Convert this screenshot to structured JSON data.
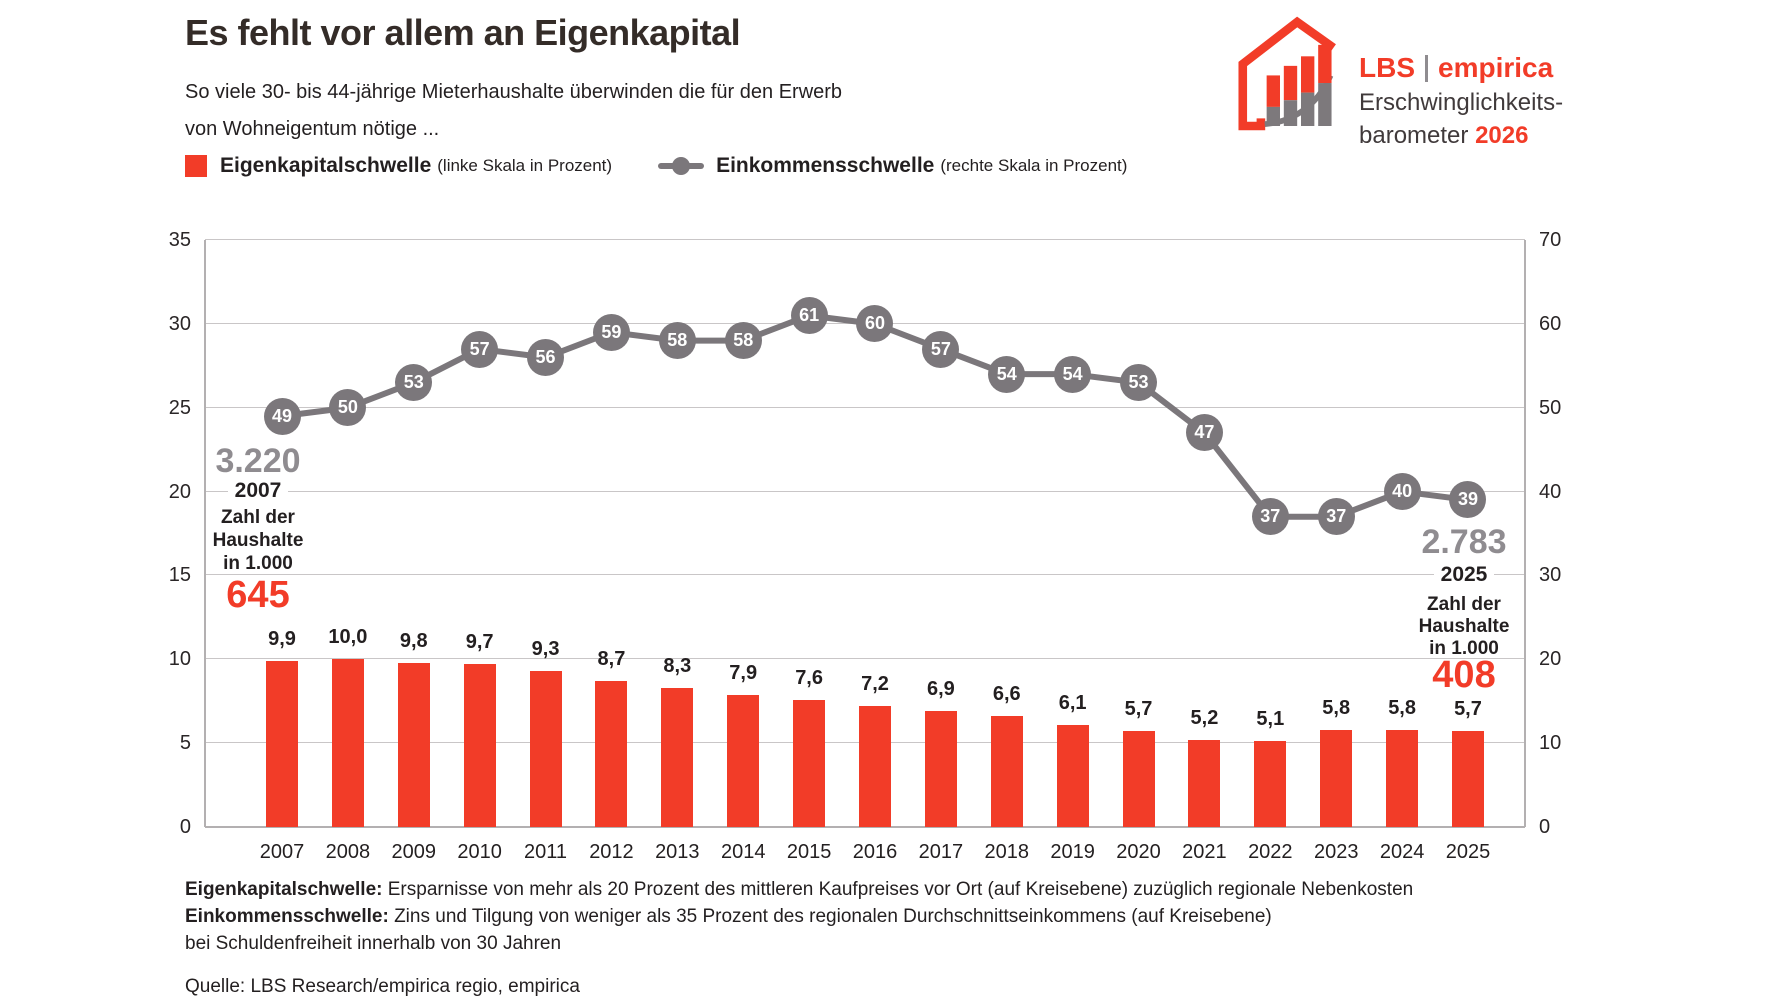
{
  "header": {
    "title": "Es fehlt vor allem an Eigenkapital",
    "subtitle_line1": "So viele 30- bis 44-jährige Mieterhaushalte überwinden die für den Erwerb",
    "subtitle_line2": "von Wohneigentum nötige ...",
    "logo": {
      "brand_left": "LBS",
      "brand_right": "empirica",
      "product_line1": "Erschwinglichkeits-",
      "product_line2": "barometer ",
      "product_year": "2026"
    }
  },
  "legend": {
    "series1_label": "Eigenkapitalschwelle",
    "series1_note": "(linke Skala in Prozent)",
    "series2_label": "Einkommensschwelle",
    "series2_note": "(rechte Skala in Prozent)"
  },
  "colors": {
    "accent_red": "#f23c28",
    "line_gray": "#7b777b",
    "annotation_gray": "#8f8c90"
  },
  "chart_data": {
    "type": "bar+line",
    "title": "Es fehlt vor allem an Eigenkapital",
    "categories": [
      "2007",
      "2008",
      "2009",
      "2010",
      "2011",
      "2012",
      "2013",
      "2014",
      "2015",
      "2016",
      "2017",
      "2018",
      "2019",
      "2020",
      "2021",
      "2022",
      "2023",
      "2024",
      "2025"
    ],
    "series": [
      {
        "name": "Eigenkapitalschwelle",
        "type": "bar",
        "axis": "left",
        "color": "#f23c28",
        "values": [
          9.9,
          10.0,
          9.8,
          9.7,
          9.3,
          8.7,
          8.3,
          7.9,
          7.6,
          7.2,
          6.9,
          6.6,
          6.1,
          5.7,
          5.2,
          5.1,
          5.8,
          5.8,
          5.7
        ],
        "labels": [
          "9,9",
          "10,0",
          "9,8",
          "9,7",
          "9,3",
          "8,7",
          "8,3",
          "7,9",
          "7,6",
          "7,2",
          "6,9",
          "6,6",
          "6,1",
          "5,7",
          "5,2",
          "5,1",
          "5,8",
          "5,8",
          "5,7"
        ]
      },
      {
        "name": "Einkommensschwelle",
        "type": "line",
        "axis": "right",
        "color": "#7b777b",
        "values": [
          49,
          50,
          53,
          57,
          56,
          59,
          58,
          58,
          61,
          60,
          57,
          54,
          54,
          53,
          47,
          37,
          37,
          40,
          39
        ]
      }
    ],
    "left_axis": {
      "min": 0,
      "max": 35,
      "ticks": [
        0,
        5,
        10,
        15,
        20,
        25,
        30,
        35
      ]
    },
    "right_axis": {
      "min": 0,
      "max": 70,
      "ticks": [
        0,
        10,
        20,
        30,
        40,
        50,
        60,
        70
      ]
    },
    "grid": true,
    "legend_position": "top",
    "annotations": {
      "left": {
        "value": "3.220",
        "year": "2007",
        "caption": [
          "Zahl der",
          "Haushalte",
          "in 1.000"
        ],
        "highlight": "645",
        "value_color": "#8f8c90",
        "highlight_color": "#f23c28"
      },
      "right": {
        "value": "2.783",
        "year": "2025",
        "caption": [
          "Zahl der",
          "Haushalte",
          "in 1.000"
        ],
        "highlight": "408",
        "value_color": "#8f8c90",
        "highlight_color": "#f23c28"
      }
    }
  },
  "footer": {
    "line1_bold": "Eigenkapitalschwelle:",
    "line1_rest": " Ersparnisse von mehr als 20 Prozent des mittleren Kaufpreises vor Ort (auf Kreisebene) zuzüglich regionale Nebenkosten",
    "line2_bold": "Einkommensschwelle:",
    "line2_rest": " Zins und Tilgung von weniger als 35 Prozent des regionalen Durchschnittseinkommens (auf Kreisebene)",
    "line3": "bei Schuldenfreiheit innerhalb von 30 Jahren",
    "source": "Quelle: LBS Research/empirica regio, empirica"
  }
}
